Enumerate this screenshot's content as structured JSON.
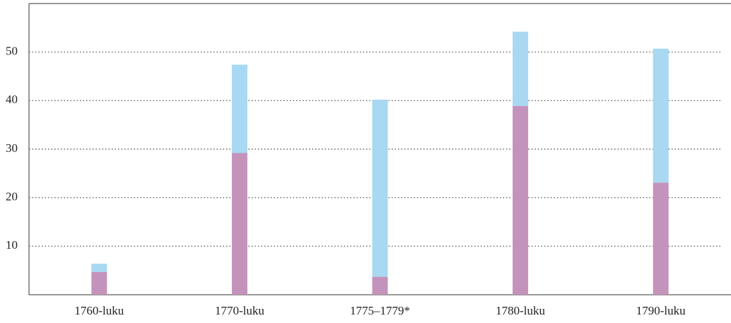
{
  "chart_data": {
    "type": "stacked_bar",
    "categories": [
      "1760-luku",
      "1770-luku",
      "1775–1779*",
      "1780-luku",
      "1790-luku"
    ],
    "series": [
      {
        "color": "#c493bb",
        "values": [
          4.7,
          29.2,
          3.7,
          38.9,
          23.1
        ]
      },
      {
        "color": "#a8d8f2",
        "values": [
          1.7,
          18.2,
          36.5,
          15.3,
          27.6
        ]
      }
    ],
    "ylim": [
      0,
      60
    ],
    "yticks": [
      10,
      20,
      30,
      40,
      50
    ],
    "grid": true
  }
}
